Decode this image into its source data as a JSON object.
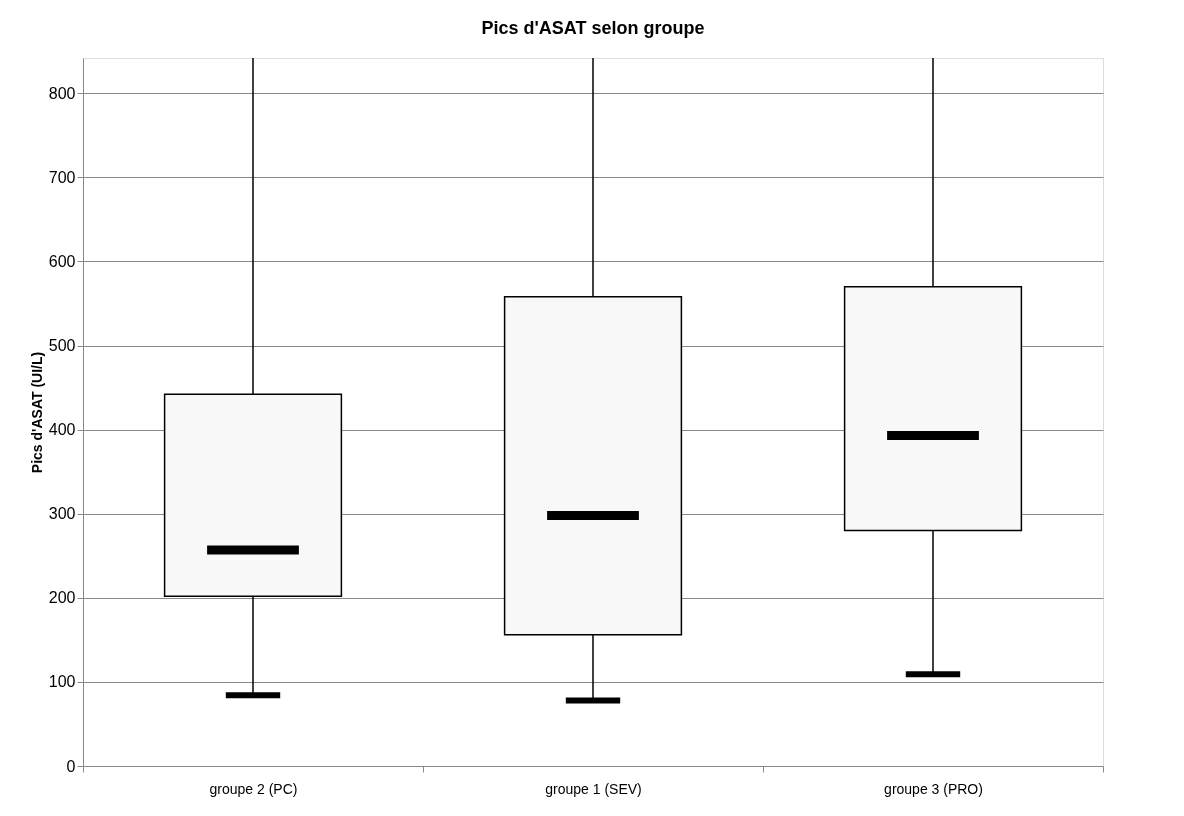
{
  "chart_data": {
    "type": "box",
    "title": "Pics d'ASAT selon groupe",
    "ylabel": "Pics d'ASAT (UI/L)",
    "categories": [
      "groupe 2 (PC)",
      "groupe 1 (SEV)",
      "groupe 3 (PRO)"
    ],
    "boxes": [
      {
        "low": 84,
        "q1": 202,
        "median": 257,
        "q3": 442,
        "high": 842
      },
      {
        "low": 78,
        "q1": 156,
        "median": 298,
        "q3": 558,
        "high": 842
      },
      {
        "low": 109,
        "q1": 280,
        "median": 393,
        "q3": 570,
        "high": 842
      }
    ],
    "color": "#f8f8f8",
    "ylim": [
      0,
      842
    ],
    "yticks": [
      0,
      100,
      200,
      300,
      400,
      500,
      600,
      700,
      800
    ],
    "grid": "y"
  }
}
